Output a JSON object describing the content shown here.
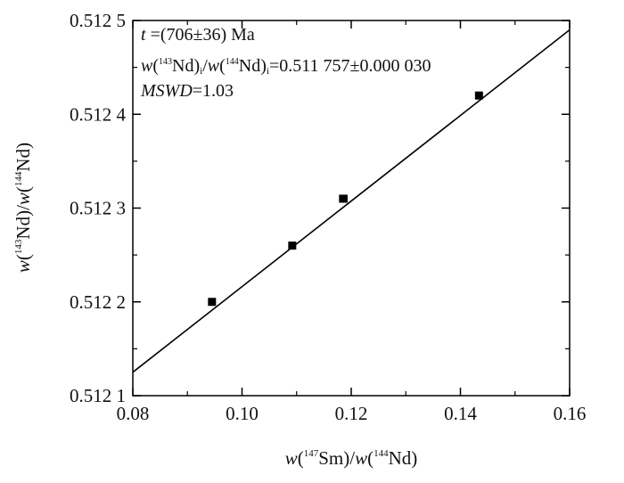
{
  "chart_data": {
    "type": "scatter",
    "x_axis": {
      "range": [
        0.08,
        0.16
      ],
      "ticks": [
        0.08,
        0.1,
        0.12,
        0.14,
        0.16
      ],
      "tick_labels": [
        "0.08",
        "0.10",
        "0.12",
        "0.14",
        "0.16"
      ],
      "label": {
        "w": "w",
        "open": "(",
        "sup1": "147",
        "mid": "Sm)/",
        "w2": "w",
        "open2": "(",
        "sup2": "144",
        "close": "Nd)"
      }
    },
    "y_axis": {
      "range": [
        0.5121,
        0.5125
      ],
      "ticks": [
        0.5121,
        0.5122,
        0.5123,
        0.5124,
        0.5125
      ],
      "tick_labels": [
        "0.512 1",
        "0.512 2",
        "0.512 3",
        "0.512 4",
        "0.512 5"
      ],
      "label": {
        "w": "w",
        "open": "(",
        "sup1": "143",
        "mid": "Nd)/",
        "w2": "w",
        "open2": "(",
        "sup2": "144",
        "close": "Nd)"
      }
    },
    "points": [
      {
        "x": 0.0945,
        "y": 0.5122
      },
      {
        "x": 0.1092,
        "y": 0.51226
      },
      {
        "x": 0.1185,
        "y": 0.51231
      },
      {
        "x": 0.1186,
        "y": 0.51231
      },
      {
        "x": 0.1434,
        "y": 0.51242
      }
    ],
    "isochron_line": [
      {
        "x": 0.08,
        "y": 0.512125
      },
      {
        "x": 0.16,
        "y": 0.51249
      }
    ],
    "annotations": {
      "age": {
        "t": "t",
        "text": " =(706±36) Ma"
      },
      "initial_ratio": {
        "w": "w",
        "open": "(",
        "sup1": "143",
        "nd1": "Nd)",
        "sub1": "i",
        "slash": "/",
        "w2": "w",
        "open2": "(",
        "sup2": "144",
        "nd2": "Nd)",
        "sub2": "i",
        "value": "=0.511 757±0.000 030"
      },
      "mswd": {
        "name": "MSWD",
        "value": "=1.03"
      }
    },
    "minor_ticks": true,
    "grid": false
  }
}
